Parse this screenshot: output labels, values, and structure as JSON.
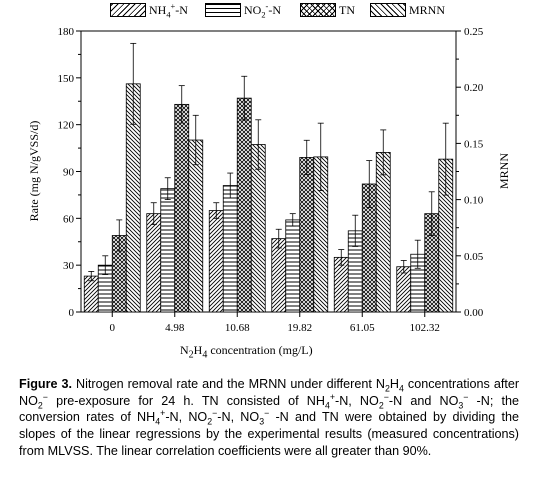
{
  "chart_data": {
    "type": "bar",
    "categories": [
      "0",
      "4.98",
      "10.68",
      "19.82",
      "61.05",
      "102.32"
    ],
    "xlabel": "N2H4 concentration (mg/L)",
    "ylabel": "Rate (mg N/gVSS/d)",
    "y2label": "MRNN",
    "ylim": [
      0,
      180
    ],
    "y2lim": [
      0,
      0.25
    ],
    "yticks": [
      "0",
      "30",
      "60",
      "90",
      "120",
      "150",
      "180"
    ],
    "y2ticks": [
      "0.00",
      "0.05",
      "0.10",
      "0.15",
      "0.20",
      "0.25"
    ],
    "legend_position": "top",
    "series": [
      {
        "name": "NH4+-N",
        "axis": "left",
        "pattern": "diag-fwd",
        "values": [
          23,
          63,
          65,
          47,
          35,
          29
        ],
        "errors": [
          3,
          7,
          5,
          6,
          5,
          4
        ]
      },
      {
        "name": "NO2--N",
        "axis": "left",
        "pattern": "horiz",
        "values": [
          30,
          79,
          81,
          59,
          52,
          37
        ],
        "errors": [
          6,
          7,
          8,
          4,
          10,
          9
        ]
      },
      {
        "name": "TN",
        "axis": "left",
        "pattern": "cross",
        "values": [
          49,
          133,
          137,
          99,
          82,
          63
        ],
        "errors": [
          10,
          12,
          14,
          11,
          15,
          14
        ]
      },
      {
        "name": "MRNN",
        "axis": "right",
        "pattern": "diag-back",
        "values": [
          0.203,
          0.153,
          0.149,
          0.138,
          0.142,
          0.136
        ],
        "errors": [
          0.036,
          0.022,
          0.022,
          0.03,
          0.02,
          0.032
        ]
      }
    ]
  },
  "legend": {
    "nh4_main": "NH",
    "nh4_sub": "4",
    "nh4_sup": "+",
    "nh4_tail": "-N",
    "no2_main": "NO",
    "no2_sub": "2",
    "no2_sup": "-",
    "no2_tail": "-N",
    "tn": "TN",
    "mrnn": "MRNN"
  },
  "axis_titles": {
    "x_main": "N",
    "x_sub1": "2",
    "x_mid": "H",
    "x_sub2": "4",
    "x_tail": " concentration (mg/L)",
    "y_left": "Rate (mg N/gVSS/d)",
    "y_right": "MRNN"
  },
  "caption": {
    "label": "Figure 3.",
    "text": " Nitrogen removal rate and the MRNN under different N",
    "s1": "2",
    "t1": "H",
    "s2": "4",
    "t2": " concentrations after NO",
    "s3": "2",
    "p3": "−",
    "t3": " pre-exposure for 24 h. TN consisted of NH",
    "s4": "4",
    "p4": "+",
    "t4": "-N, NO",
    "s5": "2",
    "p5": "−",
    "t5": "-N and NO",
    "s6": "3",
    "p6": "−",
    "t6": " -N; the conversion rates of NH",
    "s7": "4",
    "p7": "+",
    "t7": "-N, NO",
    "s8": "2",
    "p8": "−",
    "t8": "-N, NO",
    "s9": "3",
    "p9": "−",
    "t9": " -N and TN were obtained by dividing the slopes of the linear regressions by the experimental results (measured concentrations) from MLVSS. The linear correlation coefficients were all greater than 90%."
  }
}
